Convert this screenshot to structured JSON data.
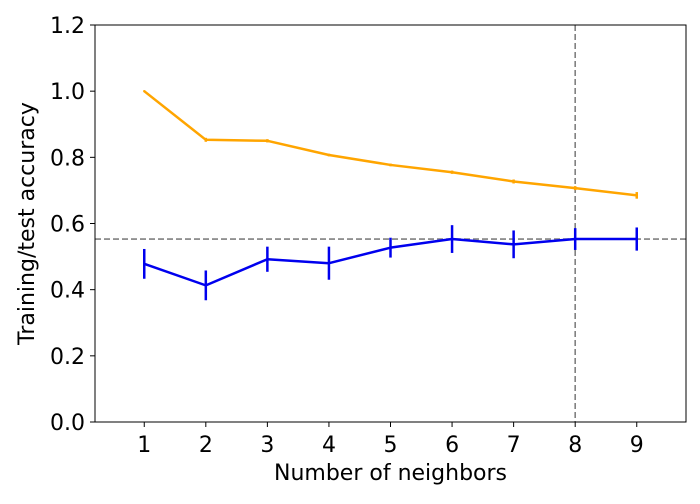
{
  "chart_data": {
    "type": "line",
    "title": "",
    "xlabel": "Number of neighbors",
    "ylabel": "Training/test accuracy",
    "x": [
      1,
      2,
      3,
      4,
      5,
      6,
      7,
      8,
      9
    ],
    "xlim": [
      0.2,
      9.8
    ],
    "ylim": [
      0.0,
      1.2
    ],
    "x_ticks": [
      "1",
      "2",
      "3",
      "4",
      "5",
      "6",
      "7",
      "8",
      "9"
    ],
    "y_ticks": [
      "0.0",
      "0.2",
      "0.4",
      "0.6",
      "0.8",
      "1.0",
      "1.2"
    ],
    "grid": false,
    "legend": "none",
    "series": [
      {
        "color": "#FFA500",
        "values": [
          1.0,
          0.853,
          0.85,
          0.807,
          0.777,
          0.755,
          0.727,
          0.707,
          0.685
        ],
        "errors": [
          0.0,
          0.006,
          0.005,
          0.004,
          0.004,
          0.005,
          0.006,
          0.006,
          0.01
        ]
      },
      {
        "color": "#0000EE",
        "values": [
          0.478,
          0.413,
          0.492,
          0.48,
          0.527,
          0.553,
          0.537,
          0.553,
          0.553
        ],
        "errors": [
          0.045,
          0.045,
          0.038,
          0.05,
          0.03,
          0.042,
          0.042,
          0.033,
          0.035
        ]
      }
    ],
    "reference_lines": [
      {
        "orientation": "horizontal",
        "value": 0.553,
        "color": "#808080",
        "style": "dashed"
      },
      {
        "orientation": "vertical",
        "value": 8,
        "color": "#808080",
        "style": "dashed"
      }
    ]
  }
}
